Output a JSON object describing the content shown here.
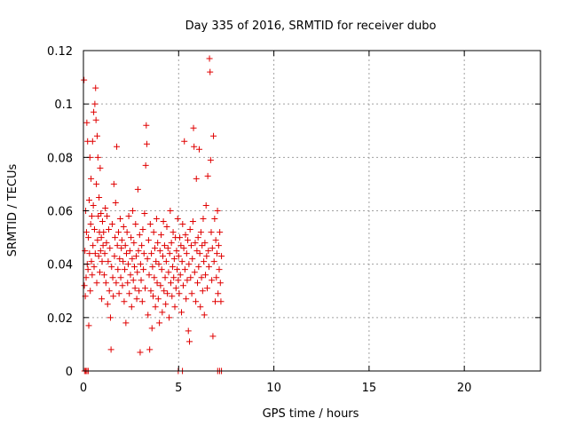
{
  "chart_data": {
    "type": "scatter",
    "title": "Day 335 of 2016, SRMTID for receiver dubo",
    "xlabel": "GPS time / hours",
    "ylabel": "SRMTID / TECUs",
    "xlim": [
      0,
      24
    ],
    "ylim": [
      0,
      0.12
    ],
    "xticks": [
      0,
      5,
      10,
      15,
      20
    ],
    "xtick_labels": [
      "0",
      "5",
      "10",
      "15",
      "20"
    ],
    "yticks": [
      0,
      0.02,
      0.04,
      0.06,
      0.08,
      0.1,
      0.12
    ],
    "ytick_labels": [
      "0",
      "0.02",
      "0.04",
      "0.06",
      "0.08",
      "0.1",
      "0.12"
    ],
    "grid": true,
    "marker": "+",
    "marker_color": "#e00000",
    "series": [
      {
        "name": "SRMTID",
        "points": [
          [
            0.03,
            0.109
          ],
          [
            0.05,
            0.032
          ],
          [
            0.08,
            0.045
          ],
          [
            0.1,
            0.028
          ],
          [
            0.12,
            0.06
          ],
          [
            0.14,
            0.035
          ],
          [
            0.16,
            0.052
          ],
          [
            0.18,
            0.093
          ],
          [
            0.2,
            0.04
          ],
          [
            0.22,
            0.086
          ],
          [
            0.24,
            0.038
          ],
          [
            0.26,
            0.05
          ],
          [
            0.28,
            0.017
          ],
          [
            0.3,
            0.064
          ],
          [
            0.32,
            0.044
          ],
          [
            0.34,
            0.08
          ],
          [
            0.36,
            0.03
          ],
          [
            0.38,
            0.055
          ],
          [
            0.4,
            0.072
          ],
          [
            0.42,
            0.041
          ],
          [
            0.44,
            0.058
          ],
          [
            0.46,
            0.036
          ],
          [
            0.48,
            0.086
          ],
          [
            0.5,
            0.047
          ],
          [
            0.52,
            0.062
          ],
          [
            0.54,
            0.097
          ],
          [
            0.56,
            0.039
          ],
          [
            0.58,
            0.053
          ],
          [
            0.6,
            0.1
          ],
          [
            0.62,
            0.044
          ],
          [
            0.64,
            0.106
          ],
          [
            0.66,
            0.094
          ],
          [
            0.68,
            0.07
          ],
          [
            0.7,
            0.033
          ],
          [
            0.72,
            0.088
          ],
          [
            0.74,
            0.049
          ],
          [
            0.76,
            0.08
          ],
          [
            0.78,
            0.058
          ],
          [
            0.8,
            0.043
          ],
          [
            0.82,
            0.065
          ],
          [
            0.84,
            0.052
          ],
          [
            0.86,
            0.037
          ],
          [
            0.88,
            0.076
          ],
          [
            0.9,
            0.045
          ],
          [
            0.92,
            0.059
          ],
          [
            0.94,
            0.05
          ],
          [
            0.96,
            0.027
          ],
          [
            0.98,
            0.041
          ],
          [
            1.0,
            0.056
          ],
          [
            1.03,
            0.047
          ],
          [
            1.06,
            0.052
          ],
          [
            1.09,
            0.036
          ],
          [
            1.12,
            0.044
          ],
          [
            1.15,
            0.061
          ],
          [
            1.18,
            0.033
          ],
          [
            1.21,
            0.048
          ],
          [
            1.24,
            0.058
          ],
          [
            1.27,
            0.025
          ],
          [
            1.3,
            0.041
          ],
          [
            1.33,
            0.053
          ],
          [
            1.36,
            0.03
          ],
          [
            1.39,
            0.046
          ],
          [
            1.42,
            0.02
          ],
          [
            1.45,
            0.008
          ],
          [
            1.48,
            0.039
          ],
          [
            1.51,
            0.055
          ],
          [
            1.54,
            0.035
          ],
          [
            1.57,
            0.028
          ],
          [
            1.6,
            0.07
          ],
          [
            1.63,
            0.043
          ],
          [
            1.66,
            0.05
          ],
          [
            1.69,
            0.063
          ],
          [
            1.72,
            0.033
          ],
          [
            1.75,
            0.084
          ],
          [
            1.78,
            0.047
          ],
          [
            1.81,
            0.038
          ],
          [
            1.84,
            0.052
          ],
          [
            1.87,
            0.029
          ],
          [
            1.9,
            0.042
          ],
          [
            1.93,
            0.057
          ],
          [
            1.96,
            0.035
          ],
          [
            1.99,
            0.046
          ],
          [
            2.02,
            0.049
          ],
          [
            2.05,
            0.032
          ],
          [
            2.08,
            0.041
          ],
          [
            2.11,
            0.054
          ],
          [
            2.14,
            0.026
          ],
          [
            2.17,
            0.038
          ],
          [
            2.2,
            0.047
          ],
          [
            2.23,
            0.018
          ],
          [
            2.26,
            0.044
          ],
          [
            2.29,
            0.052
          ],
          [
            2.32,
            0.033
          ],
          [
            2.35,
            0.04
          ],
          [
            2.38,
            0.058
          ],
          [
            2.41,
            0.029
          ],
          [
            2.44,
            0.045
          ],
          [
            2.47,
            0.036
          ],
          [
            2.5,
            0.05
          ],
          [
            2.53,
            0.024
          ],
          [
            2.56,
            0.042
          ],
          [
            2.59,
            0.06
          ],
          [
            2.62,
            0.034
          ],
          [
            2.65,
            0.048
          ],
          [
            2.68,
            0.039
          ],
          [
            2.71,
            0.031
          ],
          [
            2.74,
            0.055
          ],
          [
            2.77,
            0.043
          ],
          [
            2.8,
            0.027
          ],
          [
            2.83,
            0.037
          ],
          [
            2.86,
            0.068
          ],
          [
            2.89,
            0.045
          ],
          [
            2.92,
            0.03
          ],
          [
            2.95,
            0.051
          ],
          [
            2.98,
            0.007
          ],
          [
            3.0,
            0.04
          ],
          [
            3.03,
            0.034
          ],
          [
            3.06,
            0.047
          ],
          [
            3.09,
            0.026
          ],
          [
            3.12,
            0.053
          ],
          [
            3.15,
            0.038
          ],
          [
            3.18,
            0.044
          ],
          [
            3.21,
            0.059
          ],
          [
            3.24,
            0.031
          ],
          [
            3.27,
            0.077
          ],
          [
            3.3,
            0.092
          ],
          [
            3.33,
            0.085
          ],
          [
            3.36,
            0.042
          ],
          [
            3.39,
            0.021
          ],
          [
            3.42,
            0.049
          ],
          [
            3.45,
            0.036
          ],
          [
            3.48,
            0.008
          ],
          [
            3.51,
            0.055
          ],
          [
            3.54,
            0.03
          ],
          [
            3.57,
            0.044
          ],
          [
            3.6,
            0.016
          ],
          [
            3.63,
            0.039
          ],
          [
            3.66,
            0.028
          ],
          [
            3.69,
            0.052
          ],
          [
            3.72,
            0.035
          ],
          [
            3.75,
            0.046
          ],
          [
            3.78,
            0.024
          ],
          [
            3.81,
            0.041
          ],
          [
            3.84,
            0.057
          ],
          [
            3.87,
            0.033
          ],
          [
            3.9,
            0.048
          ],
          [
            3.93,
            0.027
          ],
          [
            3.96,
            0.04
          ],
          [
            3.99,
            0.018
          ],
          [
            4.02,
            0.045
          ],
          [
            4.05,
            0.032
          ],
          [
            4.08,
            0.051
          ],
          [
            4.11,
            0.038
          ],
          [
            4.14,
            0.022
          ],
          [
            4.17,
            0.043
          ],
          [
            4.2,
            0.056
          ],
          [
            4.23,
            0.03
          ],
          [
            4.26,
            0.047
          ],
          [
            4.29,
            0.035
          ],
          [
            4.32,
            0.025
          ],
          [
            4.35,
            0.041
          ],
          [
            4.38,
            0.054
          ],
          [
            4.41,
            0.029
          ],
          [
            4.44,
            0.046
          ],
          [
            4.47,
            0.037
          ],
          [
            4.5,
            0.02
          ],
          [
            4.53,
            0.044
          ],
          [
            4.56,
            0.06
          ],
          [
            4.59,
            0.033
          ],
          [
            4.62,
            0.048
          ],
          [
            4.65,
            0.028
          ],
          [
            4.68,
            0.039
          ],
          [
            4.71,
            0.052
          ],
          [
            4.74,
            0.035
          ],
          [
            4.77,
            0.042
          ],
          [
            4.8,
            0.024
          ],
          [
            4.83,
            0.05
          ],
          [
            4.86,
            0.031
          ],
          [
            4.89,
            0.045
          ],
          [
            4.92,
            0.038
          ],
          [
            4.95,
            0.057
          ],
          [
            4.98,
            0.034
          ],
          [
            5.0,
            0.043
          ],
          [
            5.03,
            0.029
          ],
          [
            5.06,
            0.05
          ],
          [
            5.09,
            0.036
          ],
          [
            5.12,
            0.047
          ],
          [
            5.15,
            0.022
          ],
          [
            5.18,
            0.041
          ],
          [
            5.21,
            0.055
          ],
          [
            5.24,
            0.032
          ],
          [
            5.27,
            0.046
          ],
          [
            5.3,
            0.086
          ],
          [
            5.33,
            0.038
          ],
          [
            5.36,
            0.051
          ],
          [
            5.39,
            0.027
          ],
          [
            5.42,
            0.044
          ],
          [
            5.45,
            0.034
          ],
          [
            5.48,
            0.049
          ],
          [
            5.51,
            0.015
          ],
          [
            5.54,
            0.04
          ],
          [
            5.57,
            0.011
          ],
          [
            5.6,
            0.053
          ],
          [
            5.63,
            0.035
          ],
          [
            5.66,
            0.047
          ],
          [
            5.69,
            0.029
          ],
          [
            5.72,
            0.042
          ],
          [
            5.75,
            0.056
          ],
          [
            5.78,
            0.091
          ],
          [
            5.81,
            0.084
          ],
          [
            5.84,
            0.037
          ],
          [
            5.87,
            0.048
          ],
          [
            5.9,
            0.026
          ],
          [
            5.93,
            0.072
          ],
          [
            5.96,
            0.045
          ],
          [
            5.99,
            0.033
          ],
          [
            6.02,
            0.05
          ],
          [
            6.05,
            0.039
          ],
          [
            6.08,
            0.083
          ],
          [
            6.11,
            0.044
          ],
          [
            6.14,
            0.024
          ],
          [
            6.17,
            0.052
          ],
          [
            6.2,
            0.035
          ],
          [
            6.23,
            0.047
          ],
          [
            6.26,
            0.03
          ],
          [
            6.29,
            0.057
          ],
          [
            6.32,
            0.041
          ],
          [
            6.35,
            0.021
          ],
          [
            6.38,
            0.048
          ],
          [
            6.41,
            0.036
          ],
          [
            6.44,
            0.062
          ],
          [
            6.47,
            0.043
          ],
          [
            6.5,
            0.031
          ],
          [
            6.53,
            0.073
          ],
          [
            6.56,
            0.045
          ],
          [
            6.59,
            0.039
          ],
          [
            6.62,
            0.117
          ],
          [
            6.65,
            0.112
          ],
          [
            6.68,
            0.079
          ],
          [
            6.71,
            0.052
          ],
          [
            6.74,
            0.034
          ],
          [
            6.77,
            0.046
          ],
          [
            6.8,
            0.013
          ],
          [
            6.83,
            0.088
          ],
          [
            6.86,
            0.041
          ],
          [
            6.89,
            0.057
          ],
          [
            6.92,
            0.026
          ],
          [
            6.95,
            0.049
          ],
          [
            6.98,
            0.035
          ],
          [
            7.01,
            0.044
          ],
          [
            7.04,
            0.06
          ],
          [
            7.07,
            0.029
          ],
          [
            7.1,
            0.047
          ],
          [
            7.13,
            0.038
          ],
          [
            7.16,
            0.052
          ],
          [
            7.19,
            0.033
          ],
          [
            7.22,
            0.026
          ],
          [
            7.25,
            0.043
          ],
          [
            0.06,
            0.0
          ],
          [
            0.12,
            0.0
          ],
          [
            0.18,
            0.0
          ],
          [
            0.25,
            0.0
          ],
          [
            4.98,
            0.0
          ],
          [
            5.2,
            0.0
          ],
          [
            7.05,
            0.0
          ],
          [
            7.15,
            0.0
          ],
          [
            7.25,
            0.0
          ]
        ]
      }
    ]
  }
}
